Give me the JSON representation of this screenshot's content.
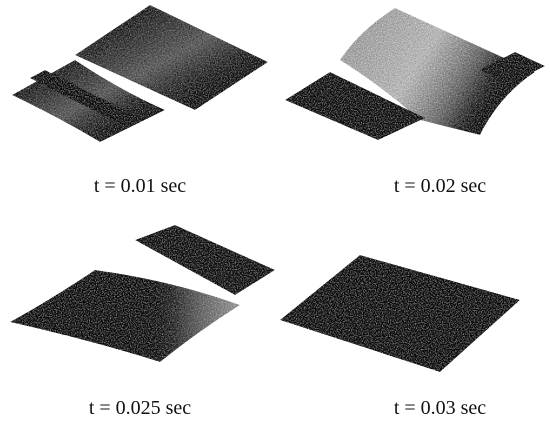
{
  "panels": [
    {
      "caption": "t = 0.01 sec"
    },
    {
      "caption": "t = 0.02 sec"
    },
    {
      "caption": "t = 0.025 sec"
    },
    {
      "caption": "t = 0.03 sec"
    }
  ]
}
